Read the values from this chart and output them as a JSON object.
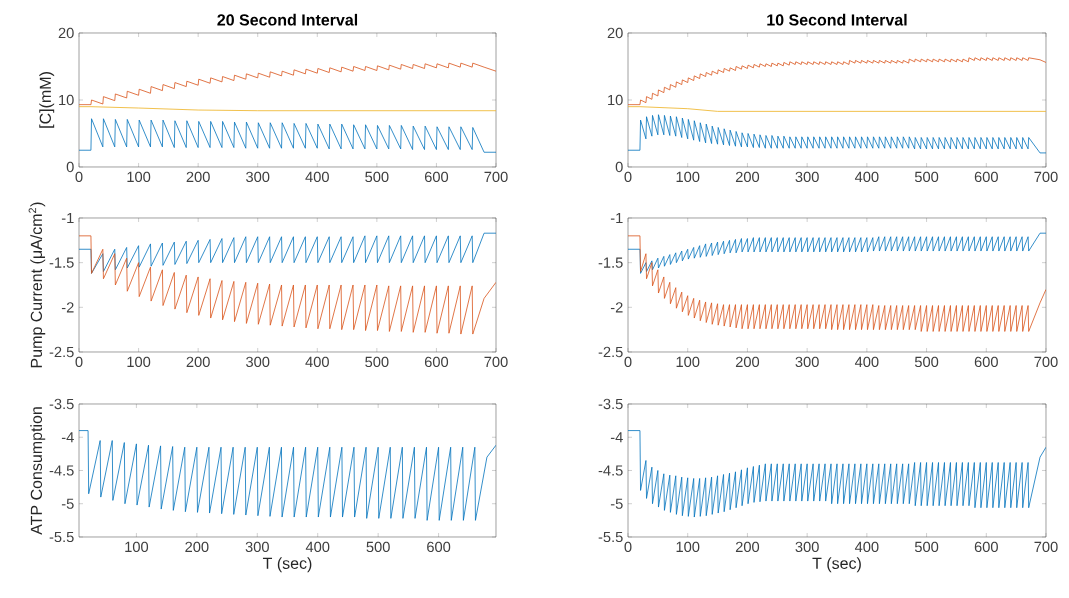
{
  "chart_data": [
    {
      "type": "line",
      "title": "20 Second Interval",
      "ylabel": "[C](mM)",
      "xlim": [
        0,
        700
      ],
      "ylim": [
        0,
        20
      ],
      "xticks": [
        0,
        100,
        200,
        300,
        400,
        500,
        600,
        700
      ],
      "yticks": [
        0,
        10,
        20
      ],
      "x": [
        0,
        20,
        21,
        40,
        41,
        60,
        61,
        80,
        81,
        100,
        101,
        120,
        121,
        140,
        141,
        160,
        161,
        180,
        181,
        200,
        201,
        220,
        221,
        240,
        241,
        260,
        261,
        280,
        281,
        300,
        301,
        320,
        321,
        340,
        341,
        360,
        361,
        380,
        381,
        400,
        401,
        420,
        421,
        440,
        441,
        460,
        461,
        480,
        481,
        500,
        501,
        520,
        521,
        540,
        541,
        560,
        561,
        580,
        581,
        600,
        601,
        620,
        621,
        640,
        641,
        660,
        661,
        680,
        700
      ],
      "series": [
        {
          "color": "#0072bd",
          "values": [
            2.5,
            2.5,
            7.2,
            3.0,
            7.2,
            3.0,
            7.1,
            3.0,
            7.1,
            3.0,
            7.0,
            3.0,
            7.0,
            3.0,
            7.0,
            2.9,
            6.9,
            2.9,
            6.9,
            2.9,
            6.8,
            2.9,
            6.8,
            2.9,
            6.8,
            2.9,
            6.7,
            2.8,
            6.7,
            2.8,
            6.6,
            2.8,
            6.6,
            2.8,
            6.6,
            2.8,
            6.5,
            2.8,
            6.5,
            2.8,
            6.4,
            2.7,
            6.4,
            2.7,
            6.4,
            2.7,
            6.3,
            2.7,
            6.3,
            2.7,
            6.2,
            2.7,
            6.2,
            2.7,
            6.2,
            2.6,
            6.1,
            2.6,
            6.1,
            2.6,
            6.0,
            2.6,
            6.0,
            2.6,
            6.0,
            2.6,
            5.9,
            2.2,
            2.2
          ]
        },
        {
          "color": "#d95319",
          "values": [
            9.3,
            9.3,
            10.0,
            9.4,
            10.5,
            9.9,
            10.9,
            10.3,
            11.3,
            10.7,
            11.6,
            11.0,
            12.0,
            11.4,
            12.3,
            11.7,
            12.6,
            12.0,
            12.8,
            12.2,
            13.1,
            12.5,
            13.3,
            12.7,
            13.5,
            12.9,
            13.7,
            13.1,
            13.9,
            13.3,
            14.0,
            13.4,
            14.2,
            13.6,
            14.3,
            13.7,
            14.5,
            13.9,
            14.6,
            14.0,
            14.7,
            14.1,
            14.8,
            14.2,
            14.9,
            14.3,
            15.0,
            14.4,
            15.0,
            14.4,
            15.1,
            14.5,
            15.2,
            14.6,
            15.3,
            14.7,
            15.3,
            14.7,
            15.4,
            14.8,
            15.4,
            14.8,
            15.5,
            14.9,
            15.5,
            14.9,
            15.5,
            14.9,
            14.3
          ]
        },
        {
          "color": "#edb120",
          "x": [
            0,
            20,
            100,
            200,
            300,
            700
          ],
          "values": [
            9.0,
            9.0,
            8.8,
            8.5,
            8.4,
            8.4
          ]
        }
      ]
    },
    {
      "type": "line",
      "title": "10 Second Interval",
      "xlim": [
        0,
        700
      ],
      "ylim": [
        0,
        20
      ],
      "xticks": [
        0,
        100,
        200,
        300,
        400,
        500,
        600,
        700
      ],
      "yticks": [
        0,
        10,
        20
      ],
      "x": [
        0,
        20,
        21,
        30,
        31,
        40,
        41,
        50,
        51,
        60,
        61,
        70,
        71,
        80,
        81,
        90,
        91,
        100,
        101,
        110,
        111,
        120,
        121,
        130,
        131,
        140,
        141,
        150,
        151,
        160,
        161,
        170,
        171,
        180,
        181,
        190,
        191,
        200,
        201,
        210,
        211,
        220,
        221,
        230,
        231,
        240,
        241,
        250,
        251,
        260,
        261,
        270,
        271,
        280,
        281,
        290,
        291,
        300,
        301,
        310,
        311,
        320,
        321,
        330,
        331,
        340,
        341,
        350,
        351,
        360,
        361,
        370,
        371,
        380,
        381,
        390,
        391,
        400,
        401,
        410,
        411,
        420,
        421,
        430,
        431,
        440,
        441,
        450,
        451,
        460,
        461,
        470,
        471,
        480,
        481,
        490,
        491,
        500,
        501,
        510,
        511,
        520,
        521,
        530,
        531,
        540,
        541,
        550,
        551,
        560,
        561,
        570,
        571,
        580,
        581,
        590,
        591,
        600,
        601,
        610,
        611,
        620,
        621,
        630,
        631,
        640,
        641,
        650,
        651,
        660,
        661,
        670,
        671,
        690,
        700
      ],
      "series": [
        {
          "color": "#0072bd",
          "values": [
            2.5,
            2.5,
            7.0,
            4.2,
            7.5,
            4.6,
            7.7,
            4.8,
            7.8,
            4.8,
            7.7,
            4.7,
            7.6,
            4.6,
            7.5,
            4.4,
            7.3,
            4.2,
            7.1,
            4.0,
            6.9,
            3.8,
            6.6,
            3.6,
            6.4,
            3.5,
            6.1,
            3.4,
            5.9,
            3.3,
            5.7,
            3.2,
            5.5,
            3.1,
            5.3,
            3.0,
            5.1,
            3.0,
            5.0,
            2.9,
            4.9,
            2.9,
            4.8,
            2.8,
            4.7,
            2.8,
            4.7,
            2.8,
            4.6,
            2.8,
            4.6,
            2.8,
            4.5,
            2.8,
            4.5,
            2.8,
            4.5,
            2.8,
            4.5,
            2.8,
            4.5,
            2.8,
            4.5,
            2.8,
            4.5,
            2.8,
            4.5,
            2.8,
            4.5,
            2.8,
            4.5,
            2.8,
            4.5,
            2.8,
            4.5,
            2.8,
            4.5,
            2.8,
            4.5,
            2.8,
            4.5,
            2.8,
            4.5,
            2.8,
            4.5,
            2.8,
            4.5,
            2.8,
            4.5,
            2.8,
            4.5,
            2.8,
            4.5,
            2.7,
            4.4,
            2.7,
            4.4,
            2.7,
            4.4,
            2.7,
            4.4,
            2.7,
            4.4,
            2.7,
            4.4,
            2.7,
            4.4,
            2.7,
            4.4,
            2.7,
            4.4,
            2.7,
            4.4,
            2.7,
            4.4,
            2.7,
            4.4,
            2.7,
            4.4,
            2.7,
            4.4,
            2.7,
            4.4,
            2.7,
            4.4,
            2.7,
            4.4,
            2.7,
            4.4,
            2.7,
            4.4,
            2.7,
            4.4,
            2.1,
            2.1
          ]
        },
        {
          "color": "#d95319",
          "values": [
            9.3,
            9.3,
            10.0,
            9.6,
            10.5,
            10.1,
            11.0,
            10.6,
            11.5,
            11.1,
            11.9,
            11.5,
            12.3,
            11.9,
            12.7,
            12.3,
            13.0,
            12.6,
            13.3,
            12.9,
            13.6,
            13.2,
            13.9,
            13.5,
            14.1,
            13.7,
            14.3,
            13.9,
            14.5,
            14.1,
            14.7,
            14.3,
            14.8,
            14.4,
            15.0,
            14.6,
            15.1,
            14.7,
            15.2,
            14.8,
            15.3,
            14.9,
            15.4,
            15.0,
            15.4,
            15.0,
            15.5,
            15.1,
            15.5,
            15.1,
            15.6,
            15.2,
            15.7,
            15.3,
            15.7,
            15.3,
            15.7,
            15.3,
            15.7,
            15.3,
            15.7,
            15.3,
            15.7,
            15.3,
            15.7,
            15.3,
            15.7,
            15.3,
            15.7,
            15.3,
            15.7,
            15.3,
            15.9,
            15.5,
            15.9,
            15.5,
            15.9,
            15.5,
            15.9,
            15.5,
            15.9,
            15.5,
            15.9,
            15.5,
            15.9,
            15.5,
            15.9,
            15.5,
            15.9,
            15.5,
            15.9,
            15.5,
            16.1,
            15.7,
            16.1,
            15.7,
            16.1,
            15.7,
            16.1,
            15.7,
            16.1,
            15.7,
            16.1,
            15.7,
            16.1,
            15.7,
            16.1,
            15.7,
            16.1,
            15.7,
            16.1,
            15.7,
            16.3,
            15.9,
            16.3,
            15.9,
            16.3,
            15.9,
            16.3,
            15.9,
            16.3,
            15.9,
            16.3,
            15.9,
            16.3,
            15.9,
            16.3,
            15.9,
            16.3,
            15.9,
            16.3,
            15.9,
            16.3,
            16.0,
            15.6
          ]
        },
        {
          "color": "#edb120",
          "x": [
            0,
            20,
            100,
            150,
            700
          ],
          "values": [
            9.0,
            9.0,
            8.7,
            8.3,
            8.3
          ]
        }
      ]
    },
    {
      "type": "line",
      "ylabel": "Pump Current (μA/cm$^{2}$)",
      "xlim": [
        0,
        700
      ],
      "ylim": [
        -2.5,
        -1
      ],
      "xticks": [
        0,
        100,
        200,
        300,
        400,
        500,
        600,
        700
      ],
      "yticks": [
        -2.5,
        -2,
        -1.5,
        -1
      ],
      "x": [
        0,
        20,
        21,
        40,
        41,
        60,
        61,
        80,
        81,
        100,
        101,
        120,
        121,
        140,
        141,
        160,
        161,
        180,
        181,
        200,
        201,
        220,
        221,
        240,
        241,
        260,
        261,
        280,
        281,
        300,
        301,
        320,
        321,
        340,
        341,
        360,
        361,
        380,
        381,
        400,
        401,
        420,
        421,
        440,
        441,
        460,
        461,
        480,
        481,
        500,
        501,
        520,
        521,
        540,
        541,
        560,
        561,
        580,
        581,
        600,
        601,
        620,
        621,
        640,
        641,
        660,
        661,
        680,
        700
      ],
      "series": [
        {
          "color": "#0072bd",
          "values": [
            -1.35,
            -1.35,
            -1.62,
            -1.4,
            -1.6,
            -1.35,
            -1.58,
            -1.33,
            -1.56,
            -1.31,
            -1.55,
            -1.29,
            -1.54,
            -1.28,
            -1.53,
            -1.27,
            -1.52,
            -1.26,
            -1.51,
            -1.25,
            -1.5,
            -1.24,
            -1.5,
            -1.23,
            -1.5,
            -1.22,
            -1.5,
            -1.21,
            -1.5,
            -1.21,
            -1.5,
            -1.21,
            -1.5,
            -1.21,
            -1.5,
            -1.21,
            -1.5,
            -1.21,
            -1.5,
            -1.21,
            -1.5,
            -1.21,
            -1.5,
            -1.21,
            -1.5,
            -1.21,
            -1.5,
            -1.2,
            -1.5,
            -1.2,
            -1.5,
            -1.2,
            -1.5,
            -1.2,
            -1.5,
            -1.2,
            -1.5,
            -1.2,
            -1.5,
            -1.2,
            -1.5,
            -1.2,
            -1.5,
            -1.2,
            -1.5,
            -1.2,
            -1.5,
            -1.17,
            -1.17
          ]
        },
        {
          "color": "#d95319",
          "values": [
            -1.2,
            -1.2,
            -1.62,
            -1.35,
            -1.68,
            -1.4,
            -1.75,
            -1.45,
            -1.82,
            -1.5,
            -1.88,
            -1.55,
            -1.93,
            -1.58,
            -1.98,
            -1.61,
            -2.02,
            -1.64,
            -2.06,
            -1.66,
            -2.09,
            -1.68,
            -2.12,
            -1.7,
            -2.14,
            -1.71,
            -2.16,
            -1.72,
            -2.18,
            -1.73,
            -2.19,
            -1.74,
            -2.2,
            -1.75,
            -2.21,
            -1.75,
            -2.22,
            -1.75,
            -2.23,
            -1.75,
            -2.24,
            -1.75,
            -2.24,
            -1.75,
            -2.25,
            -1.75,
            -2.25,
            -1.75,
            -2.26,
            -1.75,
            -2.26,
            -1.76,
            -2.27,
            -1.76,
            -2.27,
            -1.76,
            -2.28,
            -1.76,
            -2.28,
            -1.76,
            -2.29,
            -1.76,
            -2.29,
            -1.76,
            -2.3,
            -1.76,
            -2.3,
            -1.9,
            -1.72
          ]
        }
      ]
    },
    {
      "type": "line",
      "xlim": [
        0,
        700
      ],
      "ylim": [
        -2.5,
        -1
      ],
      "xticks": [
        0,
        100,
        200,
        300,
        400,
        500,
        600,
        700
      ],
      "yticks": [
        -2.5,
        -2,
        -1.5,
        -1
      ],
      "x": [
        0,
        20,
        21,
        30,
        31,
        40,
        41,
        50,
        51,
        60,
        61,
        70,
        71,
        80,
        81,
        90,
        91,
        100,
        101,
        110,
        111,
        120,
        121,
        130,
        131,
        140,
        141,
        150,
        151,
        160,
        161,
        170,
        171,
        180,
        181,
        190,
        191,
        200,
        201,
        210,
        211,
        220,
        221,
        230,
        231,
        240,
        241,
        250,
        251,
        260,
        261,
        270,
        271,
        280,
        281,
        290,
        291,
        300,
        301,
        310,
        311,
        320,
        321,
        330,
        331,
        340,
        341,
        350,
        351,
        360,
        361,
        370,
        371,
        380,
        381,
        390,
        391,
        400,
        401,
        410,
        411,
        420,
        421,
        430,
        431,
        440,
        441,
        450,
        451,
        460,
        461,
        470,
        471,
        480,
        481,
        490,
        491,
        500,
        501,
        510,
        511,
        520,
        521,
        530,
        531,
        540,
        541,
        550,
        551,
        560,
        561,
        570,
        571,
        580,
        581,
        590,
        591,
        600,
        601,
        610,
        611,
        620,
        621,
        630,
        631,
        640,
        641,
        650,
        651,
        660,
        661,
        670,
        671,
        690,
        700
      ],
      "series": [
        {
          "color": "#0072bd",
          "values": [
            -1.35,
            -1.35,
            -1.62,
            -1.5,
            -1.6,
            -1.48,
            -1.58,
            -1.45,
            -1.56,
            -1.43,
            -1.54,
            -1.41,
            -1.52,
            -1.39,
            -1.5,
            -1.37,
            -1.48,
            -1.35,
            -1.46,
            -1.33,
            -1.45,
            -1.31,
            -1.44,
            -1.29,
            -1.43,
            -1.28,
            -1.42,
            -1.27,
            -1.41,
            -1.26,
            -1.4,
            -1.25,
            -1.39,
            -1.24,
            -1.39,
            -1.23,
            -1.38,
            -1.23,
            -1.38,
            -1.22,
            -1.38,
            -1.22,
            -1.38,
            -1.22,
            -1.38,
            -1.22,
            -1.38,
            -1.22,
            -1.38,
            -1.22,
            -1.38,
            -1.22,
            -1.38,
            -1.22,
            -1.38,
            -1.22,
            -1.38,
            -1.22,
            -1.38,
            -1.22,
            -1.38,
            -1.22,
            -1.38,
            -1.22,
            -1.38,
            -1.22,
            -1.38,
            -1.22,
            -1.38,
            -1.22,
            -1.38,
            -1.22,
            -1.38,
            -1.22,
            -1.38,
            -1.22,
            -1.38,
            -1.22,
            -1.38,
            -1.22,
            -1.37,
            -1.21,
            -1.37,
            -1.21,
            -1.37,
            -1.21,
            -1.37,
            -1.21,
            -1.37,
            -1.21,
            -1.37,
            -1.21,
            -1.37,
            -1.21,
            -1.37,
            -1.21,
            -1.37,
            -1.21,
            -1.37,
            -1.21,
            -1.37,
            -1.21,
            -1.37,
            -1.21,
            -1.37,
            -1.21,
            -1.37,
            -1.21,
            -1.37,
            -1.21,
            -1.37,
            -1.21,
            -1.37,
            -1.21,
            -1.37,
            -1.21,
            -1.37,
            -1.21,
            -1.37,
            -1.21,
            -1.37,
            -1.21,
            -1.37,
            -1.21,
            -1.37,
            -1.21,
            -1.37,
            -1.21,
            -1.37,
            -1.21,
            -1.37,
            -1.21,
            -1.37,
            -1.17,
            -1.17
          ]
        },
        {
          "color": "#d95319",
          "values": [
            -1.2,
            -1.2,
            -1.6,
            -1.4,
            -1.68,
            -1.5,
            -1.76,
            -1.58,
            -1.84,
            -1.66,
            -1.9,
            -1.72,
            -1.96,
            -1.78,
            -2.01,
            -1.83,
            -2.05,
            -1.87,
            -2.09,
            -1.9,
            -2.12,
            -1.92,
            -2.15,
            -1.94,
            -2.17,
            -1.95,
            -2.19,
            -1.96,
            -2.2,
            -1.97,
            -2.21,
            -1.97,
            -2.22,
            -1.97,
            -2.23,
            -1.97,
            -2.24,
            -1.97,
            -2.24,
            -1.97,
            -2.24,
            -1.97,
            -2.24,
            -1.97,
            -2.24,
            -1.97,
            -2.24,
            -1.97,
            -2.24,
            -1.97,
            -2.24,
            -1.97,
            -2.24,
            -1.97,
            -2.24,
            -1.97,
            -2.24,
            -1.97,
            -2.24,
            -1.97,
            -2.24,
            -1.97,
            -2.24,
            -1.97,
            -2.24,
            -1.97,
            -2.25,
            -1.97,
            -2.25,
            -1.97,
            -2.25,
            -1.97,
            -2.25,
            -1.97,
            -2.25,
            -1.97,
            -2.25,
            -1.97,
            -2.25,
            -1.97,
            -2.25,
            -1.98,
            -2.25,
            -1.98,
            -2.25,
            -1.98,
            -2.25,
            -1.98,
            -2.25,
            -1.98,
            -2.25,
            -1.98,
            -2.25,
            -1.98,
            -2.25,
            -1.98,
            -2.27,
            -1.98,
            -2.27,
            -1.98,
            -2.27,
            -1.98,
            -2.27,
            -1.98,
            -2.27,
            -1.98,
            -2.27,
            -1.98,
            -2.27,
            -1.98,
            -2.27,
            -1.98,
            -2.27,
            -1.98,
            -2.27,
            -1.98,
            -2.27,
            -1.98,
            -2.27,
            -1.98,
            -2.27,
            -1.98,
            -2.27,
            -1.98,
            -2.27,
            -1.98,
            -2.27,
            -1.98,
            -2.27,
            -1.98,
            -2.27,
            -1.98,
            -2.27,
            -1.95,
            -1.8
          ]
        }
      ]
    },
    {
      "type": "line",
      "xlabel": "T (sec)",
      "ylabel": "ATP Consumption",
      "xlim": [
        5,
        695
      ],
      "ylim": [
        -5.5,
        -3.5
      ],
      "xticks": [
        100,
        200,
        300,
        400,
        500,
        600
      ],
      "yticks": [
        -5.5,
        -5,
        -4.5,
        -4,
        -3.5
      ],
      "x": [
        5,
        20,
        21,
        40,
        41,
        60,
        61,
        80,
        81,
        100,
        101,
        120,
        121,
        140,
        141,
        160,
        161,
        180,
        181,
        200,
        201,
        220,
        221,
        240,
        241,
        260,
        261,
        280,
        281,
        300,
        301,
        320,
        321,
        340,
        341,
        360,
        361,
        380,
        381,
        400,
        401,
        420,
        421,
        440,
        441,
        460,
        461,
        480,
        481,
        500,
        501,
        520,
        521,
        540,
        541,
        560,
        561,
        580,
        581,
        600,
        601,
        620,
        621,
        640,
        641,
        660,
        661,
        680,
        695
      ],
      "series": [
        {
          "color": "#0072bd",
          "values": [
            -3.9,
            -3.9,
            -4.85,
            -4.05,
            -4.9,
            -4.05,
            -4.95,
            -4.08,
            -5.0,
            -4.1,
            -5.02,
            -4.12,
            -5.05,
            -4.13,
            -5.08,
            -4.14,
            -5.1,
            -4.15,
            -5.12,
            -4.15,
            -5.13,
            -4.15,
            -5.14,
            -4.15,
            -5.15,
            -4.15,
            -5.16,
            -4.15,
            -5.17,
            -4.15,
            -5.18,
            -4.15,
            -5.19,
            -4.15,
            -5.2,
            -4.15,
            -5.2,
            -4.15,
            -5.2,
            -4.15,
            -5.2,
            -4.15,
            -5.2,
            -4.15,
            -5.2,
            -4.15,
            -5.2,
            -4.15,
            -5.22,
            -4.15,
            -5.22,
            -4.15,
            -5.22,
            -4.15,
            -5.22,
            -4.15,
            -5.22,
            -4.15,
            -5.25,
            -4.15,
            -5.25,
            -4.15,
            -5.25,
            -4.15,
            -5.25,
            -4.15,
            -5.25,
            -4.3,
            -4.12
          ]
        }
      ]
    },
    {
      "type": "line",
      "xlabel": "T (sec)",
      "xlim": [
        0,
        700
      ],
      "ylim": [
        -5.5,
        -3.5
      ],
      "xticks": [
        0,
        100,
        200,
        300,
        400,
        500,
        600,
        700
      ],
      "yticks": [
        -5.5,
        -5,
        -4.5,
        -4,
        -3.5
      ],
      "x": [
        0,
        20,
        21,
        30,
        31,
        40,
        41,
        50,
        51,
        60,
        61,
        70,
        71,
        80,
        81,
        90,
        91,
        100,
        101,
        110,
        111,
        120,
        121,
        130,
        131,
        140,
        141,
        150,
        151,
        160,
        161,
        170,
        171,
        180,
        181,
        190,
        191,
        200,
        201,
        210,
        211,
        220,
        221,
        230,
        231,
        240,
        241,
        250,
        251,
        260,
        261,
        270,
        271,
        280,
        281,
        290,
        291,
        300,
        301,
        310,
        311,
        320,
        321,
        330,
        331,
        340,
        341,
        350,
        351,
        360,
        361,
        370,
        371,
        380,
        381,
        390,
        391,
        400,
        401,
        410,
        411,
        420,
        421,
        430,
        431,
        440,
        441,
        450,
        451,
        460,
        461,
        470,
        471,
        480,
        481,
        490,
        491,
        500,
        501,
        510,
        511,
        520,
        521,
        530,
        531,
        540,
        541,
        550,
        551,
        560,
        561,
        570,
        571,
        580,
        581,
        590,
        591,
        600,
        601,
        610,
        611,
        620,
        621,
        630,
        631,
        640,
        641,
        650,
        651,
        660,
        661,
        670,
        671,
        690,
        700
      ],
      "series": [
        {
          "color": "#0072bd",
          "values": [
            -3.9,
            -3.9,
            -4.8,
            -4.35,
            -4.92,
            -4.45,
            -5.0,
            -4.5,
            -5.05,
            -4.55,
            -5.1,
            -4.57,
            -5.13,
            -4.58,
            -5.16,
            -4.6,
            -5.18,
            -4.61,
            -5.19,
            -4.62,
            -5.2,
            -4.62,
            -5.19,
            -4.61,
            -5.18,
            -4.6,
            -5.16,
            -4.58,
            -5.14,
            -4.56,
            -5.12,
            -4.54,
            -5.09,
            -4.52,
            -5.06,
            -4.49,
            -5.03,
            -4.46,
            -5.0,
            -4.44,
            -4.98,
            -4.42,
            -4.97,
            -4.4,
            -4.96,
            -4.4,
            -4.96,
            -4.4,
            -4.96,
            -4.4,
            -4.96,
            -4.4,
            -4.96,
            -4.4,
            -4.96,
            -4.4,
            -4.96,
            -4.4,
            -4.96,
            -4.4,
            -4.96,
            -4.4,
            -4.96,
            -4.4,
            -4.96,
            -4.4,
            -5.0,
            -4.4,
            -5.0,
            -4.4,
            -5.0,
            -4.4,
            -5.0,
            -4.4,
            -5.0,
            -4.4,
            -5.0,
            -4.4,
            -5.0,
            -4.4,
            -5.0,
            -4.4,
            -5.0,
            -4.4,
            -5.0,
            -4.4,
            -5.0,
            -4.4,
            -5.0,
            -4.4,
            -5.0,
            -4.4,
            -5.0,
            -4.38,
            -5.03,
            -4.38,
            -5.03,
            -4.38,
            -5.03,
            -4.38,
            -5.03,
            -4.38,
            -5.03,
            -4.38,
            -5.03,
            -4.38,
            -5.03,
            -4.38,
            -5.03,
            -4.38,
            -5.03,
            -4.38,
            -5.03,
            -4.38,
            -5.06,
            -4.38,
            -5.06,
            -4.38,
            -5.06,
            -4.38,
            -5.06,
            -4.38,
            -5.06,
            -4.38,
            -5.06,
            -4.38,
            -5.06,
            -4.38,
            -5.06,
            -4.38,
            -5.06,
            -4.38,
            -5.06,
            -4.3,
            -4.15
          ]
        }
      ]
    }
  ]
}
